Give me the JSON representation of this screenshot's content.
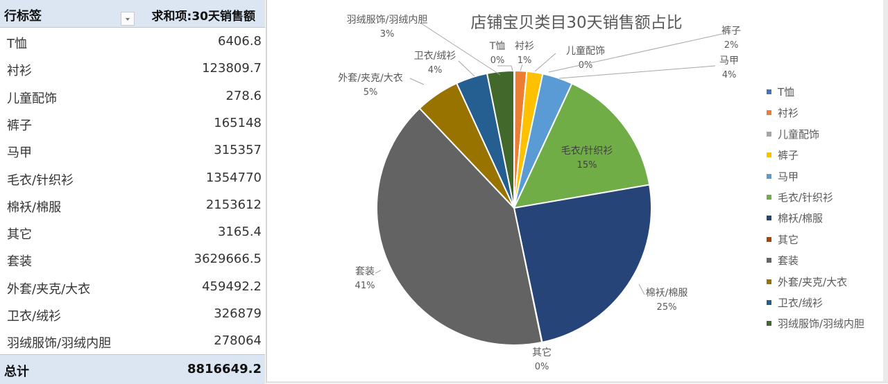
{
  "pivot": {
    "header": {
      "row_label": "行标签",
      "value_label": "求和项:30天销售额"
    },
    "rows": [
      {
        "label": "T恤",
        "value": "6406.8"
      },
      {
        "label": "衬衫",
        "value": "123809.7"
      },
      {
        "label": "儿童配饰",
        "value": "278.6"
      },
      {
        "label": "裤子",
        "value": "165148"
      },
      {
        "label": "马甲",
        "value": "315357"
      },
      {
        "label": "毛衣/针织衫",
        "value": "1354770"
      },
      {
        "label": "棉袄/棉服",
        "value": "2153612"
      },
      {
        "label": "其它",
        "value": "3165.4"
      },
      {
        "label": "套装",
        "value": "3629666.5"
      },
      {
        "label": "外套/夹克/大衣",
        "value": "459492.2"
      },
      {
        "label": "卫衣/绒衫",
        "value": "326879"
      },
      {
        "label": "羽绒服饰/羽绒内胆",
        "value": "278064"
      }
    ],
    "total": {
      "label": "总计",
      "value": "8816649.2"
    }
  },
  "chart_data": {
    "type": "pie",
    "title": "店铺宝贝类目30天销售额占比",
    "categories": [
      "T恤",
      "衬衫",
      "儿童配饰",
      "裤子",
      "马甲",
      "毛衣/针织衫",
      "棉袄/棉服",
      "其它",
      "套装",
      "外套/夹克/大衣",
      "卫衣/绒衫",
      "羽绒服饰/羽绒内胆"
    ],
    "values": [
      6406.8,
      123809.7,
      278.6,
      165148,
      315357,
      1354770,
      2153612,
      3165.4,
      3629666.5,
      459492.2,
      326879,
      278064
    ],
    "percent_labels": [
      "0%",
      "1%",
      "0%",
      "2%",
      "4%",
      "15%",
      "25%",
      "0%",
      "41%",
      "5%",
      "4%",
      "3%"
    ],
    "colors": [
      "#4472c4",
      "#ed7d31",
      "#a5a5a5",
      "#ffc000",
      "#5b9bd5",
      "#70ad47",
      "#264478",
      "#9e480e",
      "#636363",
      "#997300",
      "#255e91",
      "#43682b"
    ],
    "legend_position": "right",
    "start_angle": 0,
    "direction": "clockwise"
  }
}
